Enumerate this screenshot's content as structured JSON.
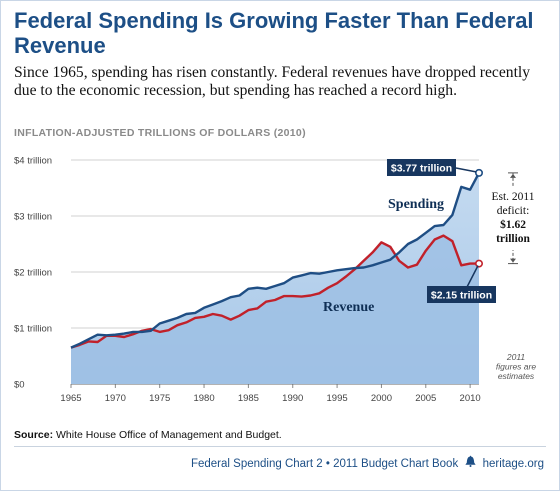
{
  "title": "Federal Spending Is Growing Faster Than Federal Revenue",
  "subtitle": "Since 1965, spending has risen constantly. Federal revenues have dropped recently due to the economic recession, but spending has reached a record high.",
  "source_label": "Source:",
  "source_text": "White House Office of Management and Budget.",
  "footer": {
    "chart_label": "Federal Spending Chart 2",
    "separator": "•",
    "book_label": "2011 Budget Chart Book",
    "site": "heritage.org",
    "icon": "liberty-bell-icon"
  },
  "colors": {
    "title": "#1d4f86",
    "spending_line": "#1f4e84",
    "spending_fill_dark": "#9dc0e4",
    "spending_fill_light": "#c7dcf1",
    "revenue_line": "#c1212a",
    "callout_bg": "#17365f"
  },
  "chart_data": {
    "type": "area",
    "units_label": "INFLATION-ADJUSTED TRILLIONS OF DOLLARS (2010)",
    "ylim": [
      0,
      4
    ],
    "xlim": [
      1965,
      2011
    ],
    "y_ticks": [
      {
        "value": 0,
        "label": "$0"
      },
      {
        "value": 1,
        "label": "$1 trillion"
      },
      {
        "value": 2,
        "label": "$2 trillion"
      },
      {
        "value": 3,
        "label": "$3 trillion"
      },
      {
        "value": 4,
        "label": "$4 trillion"
      }
    ],
    "x_ticks": [
      1965,
      1970,
      1975,
      1980,
      1985,
      1990,
      1995,
      2000,
      2005,
      2010
    ],
    "grid": true,
    "x": [
      1965,
      1966,
      1967,
      1968,
      1969,
      1970,
      1971,
      1972,
      1973,
      1974,
      1975,
      1976,
      1977,
      1978,
      1979,
      1980,
      1981,
      1982,
      1983,
      1984,
      1985,
      1986,
      1987,
      1988,
      1989,
      1990,
      1991,
      1992,
      1993,
      1994,
      1995,
      1996,
      1997,
      1998,
      1999,
      2000,
      2001,
      2002,
      2003,
      2004,
      2005,
      2006,
      2007,
      2008,
      2009,
      2010,
      2011
    ],
    "series": [
      {
        "name": "Spending",
        "values": [
          0.65,
          0.72,
          0.8,
          0.88,
          0.87,
          0.88,
          0.9,
          0.93,
          0.93,
          0.95,
          1.08,
          1.13,
          1.18,
          1.25,
          1.27,
          1.36,
          1.42,
          1.48,
          1.55,
          1.58,
          1.7,
          1.72,
          1.7,
          1.75,
          1.8,
          1.9,
          1.94,
          1.98,
          1.97,
          2.0,
          2.03,
          2.05,
          2.07,
          2.08,
          2.12,
          2.17,
          2.22,
          2.35,
          2.5,
          2.58,
          2.7,
          2.82,
          2.84,
          3.02,
          3.52,
          3.47,
          3.77
        ]
      },
      {
        "name": "Revenue",
        "values": [
          0.65,
          0.7,
          0.76,
          0.75,
          0.86,
          0.86,
          0.84,
          0.89,
          0.95,
          0.98,
          0.93,
          0.96,
          1.05,
          1.1,
          1.18,
          1.2,
          1.25,
          1.22,
          1.15,
          1.22,
          1.32,
          1.35,
          1.47,
          1.5,
          1.57,
          1.57,
          1.56,
          1.58,
          1.62,
          1.72,
          1.8,
          1.92,
          2.05,
          2.2,
          2.35,
          2.53,
          2.45,
          2.2,
          2.08,
          2.13,
          2.38,
          2.58,
          2.65,
          2.55,
          2.12,
          2.15,
          2.15
        ]
      }
    ],
    "series_labels": [
      "Spending",
      "Revenue"
    ],
    "callouts": {
      "spending_end": "$3.77 trillion",
      "revenue_end": "$2.15 trillion",
      "deficit": [
        "Est. 2011",
        "deficit:",
        "$1.62",
        "trillion"
      ],
      "note": [
        "2011",
        "figures are",
        "estimates"
      ]
    }
  }
}
